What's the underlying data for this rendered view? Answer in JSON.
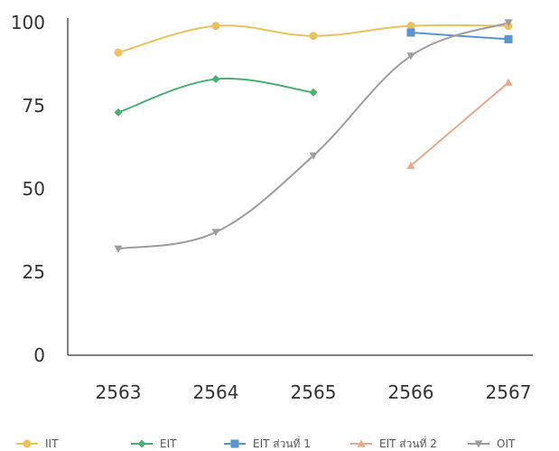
{
  "chart_data": {
    "type": "line",
    "categories": [
      "2563",
      "2564",
      "2565",
      "2566",
      "2567"
    ],
    "ylim": [
      0,
      100
    ],
    "yticks": [
      0,
      25,
      50,
      75,
      100
    ],
    "grid": false,
    "legend_position": "bottom",
    "smooth": true,
    "series": [
      {
        "name": "IIT",
        "color": "#e8c25e",
        "marker": "circle",
        "values": [
          91,
          99,
          96,
          99,
          99
        ]
      },
      {
        "name": "EIT",
        "color": "#4cae72",
        "marker": "diamond",
        "values": [
          73,
          83,
          79,
          null,
          null
        ]
      },
      {
        "name": "EIT ส่วนที่ 1",
        "color": "#5b93cf",
        "marker": "square",
        "values": [
          null,
          null,
          null,
          97,
          95
        ]
      },
      {
        "name": "EIT ส่วนที่ 2",
        "color": "#e8a88d",
        "marker": "triangle-up",
        "values": [
          null,
          null,
          null,
          57,
          82
        ]
      },
      {
        "name": "OIT",
        "color": "#9d9d9d",
        "marker": "triangle-down",
        "values": [
          32,
          37,
          60,
          90,
          100
        ]
      }
    ]
  }
}
